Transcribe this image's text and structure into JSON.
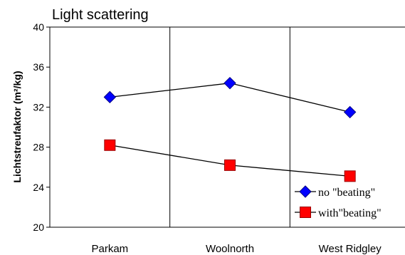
{
  "chart_data": {
    "type": "line",
    "title": "Light scattering",
    "ylabel": "Lichtstreufaktor (m²/kg)",
    "xlabel": "",
    "categories": [
      "Parkam",
      "Woolnorth",
      "West Ridgley"
    ],
    "ylim": [
      20,
      40
    ],
    "yticks": [
      20,
      24,
      28,
      32,
      36,
      40
    ],
    "grid": "vertical category dividers only",
    "legend_position": "bottom-right",
    "series": [
      {
        "name": "no  \"beating\"",
        "marker": "diamond",
        "color": "#0000ff",
        "values": [
          33.0,
          34.4,
          31.5
        ]
      },
      {
        "name": "with\"beating\"",
        "marker": "square",
        "color": "#ff0000",
        "values": [
          28.2,
          26.2,
          25.1
        ]
      }
    ]
  }
}
